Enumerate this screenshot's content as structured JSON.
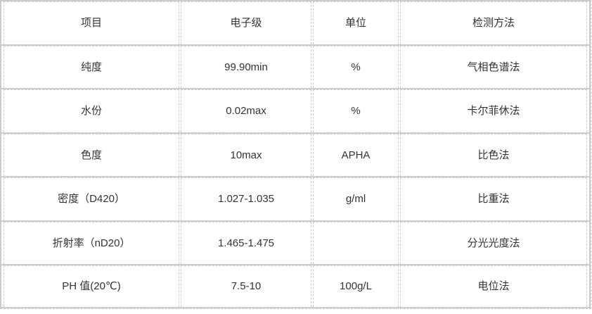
{
  "table": {
    "headers": [
      "项目",
      "电子级",
      "单位",
      "检测方法"
    ],
    "rows": [
      [
        "纯度",
        "99.90min",
        "%",
        "气相色谱法"
      ],
      [
        "水份",
        "0.02max",
        "%",
        "卡尔菲休法"
      ],
      [
        "色度",
        "10max",
        "APHA",
        "比色法"
      ],
      [
        "密度（D420）",
        "1.027-1.035",
        "g/ml",
        "比重法"
      ],
      [
        "折射率（nD20）",
        "1.465-1.475",
        "",
        "分光光度法"
      ],
      [
        "PH 值(20℃)",
        "7.5-10",
        "100g/L",
        "电位法"
      ]
    ]
  },
  "colors": {
    "border": "#cccccc",
    "text": "#333333",
    "background": "#ffffff"
  }
}
